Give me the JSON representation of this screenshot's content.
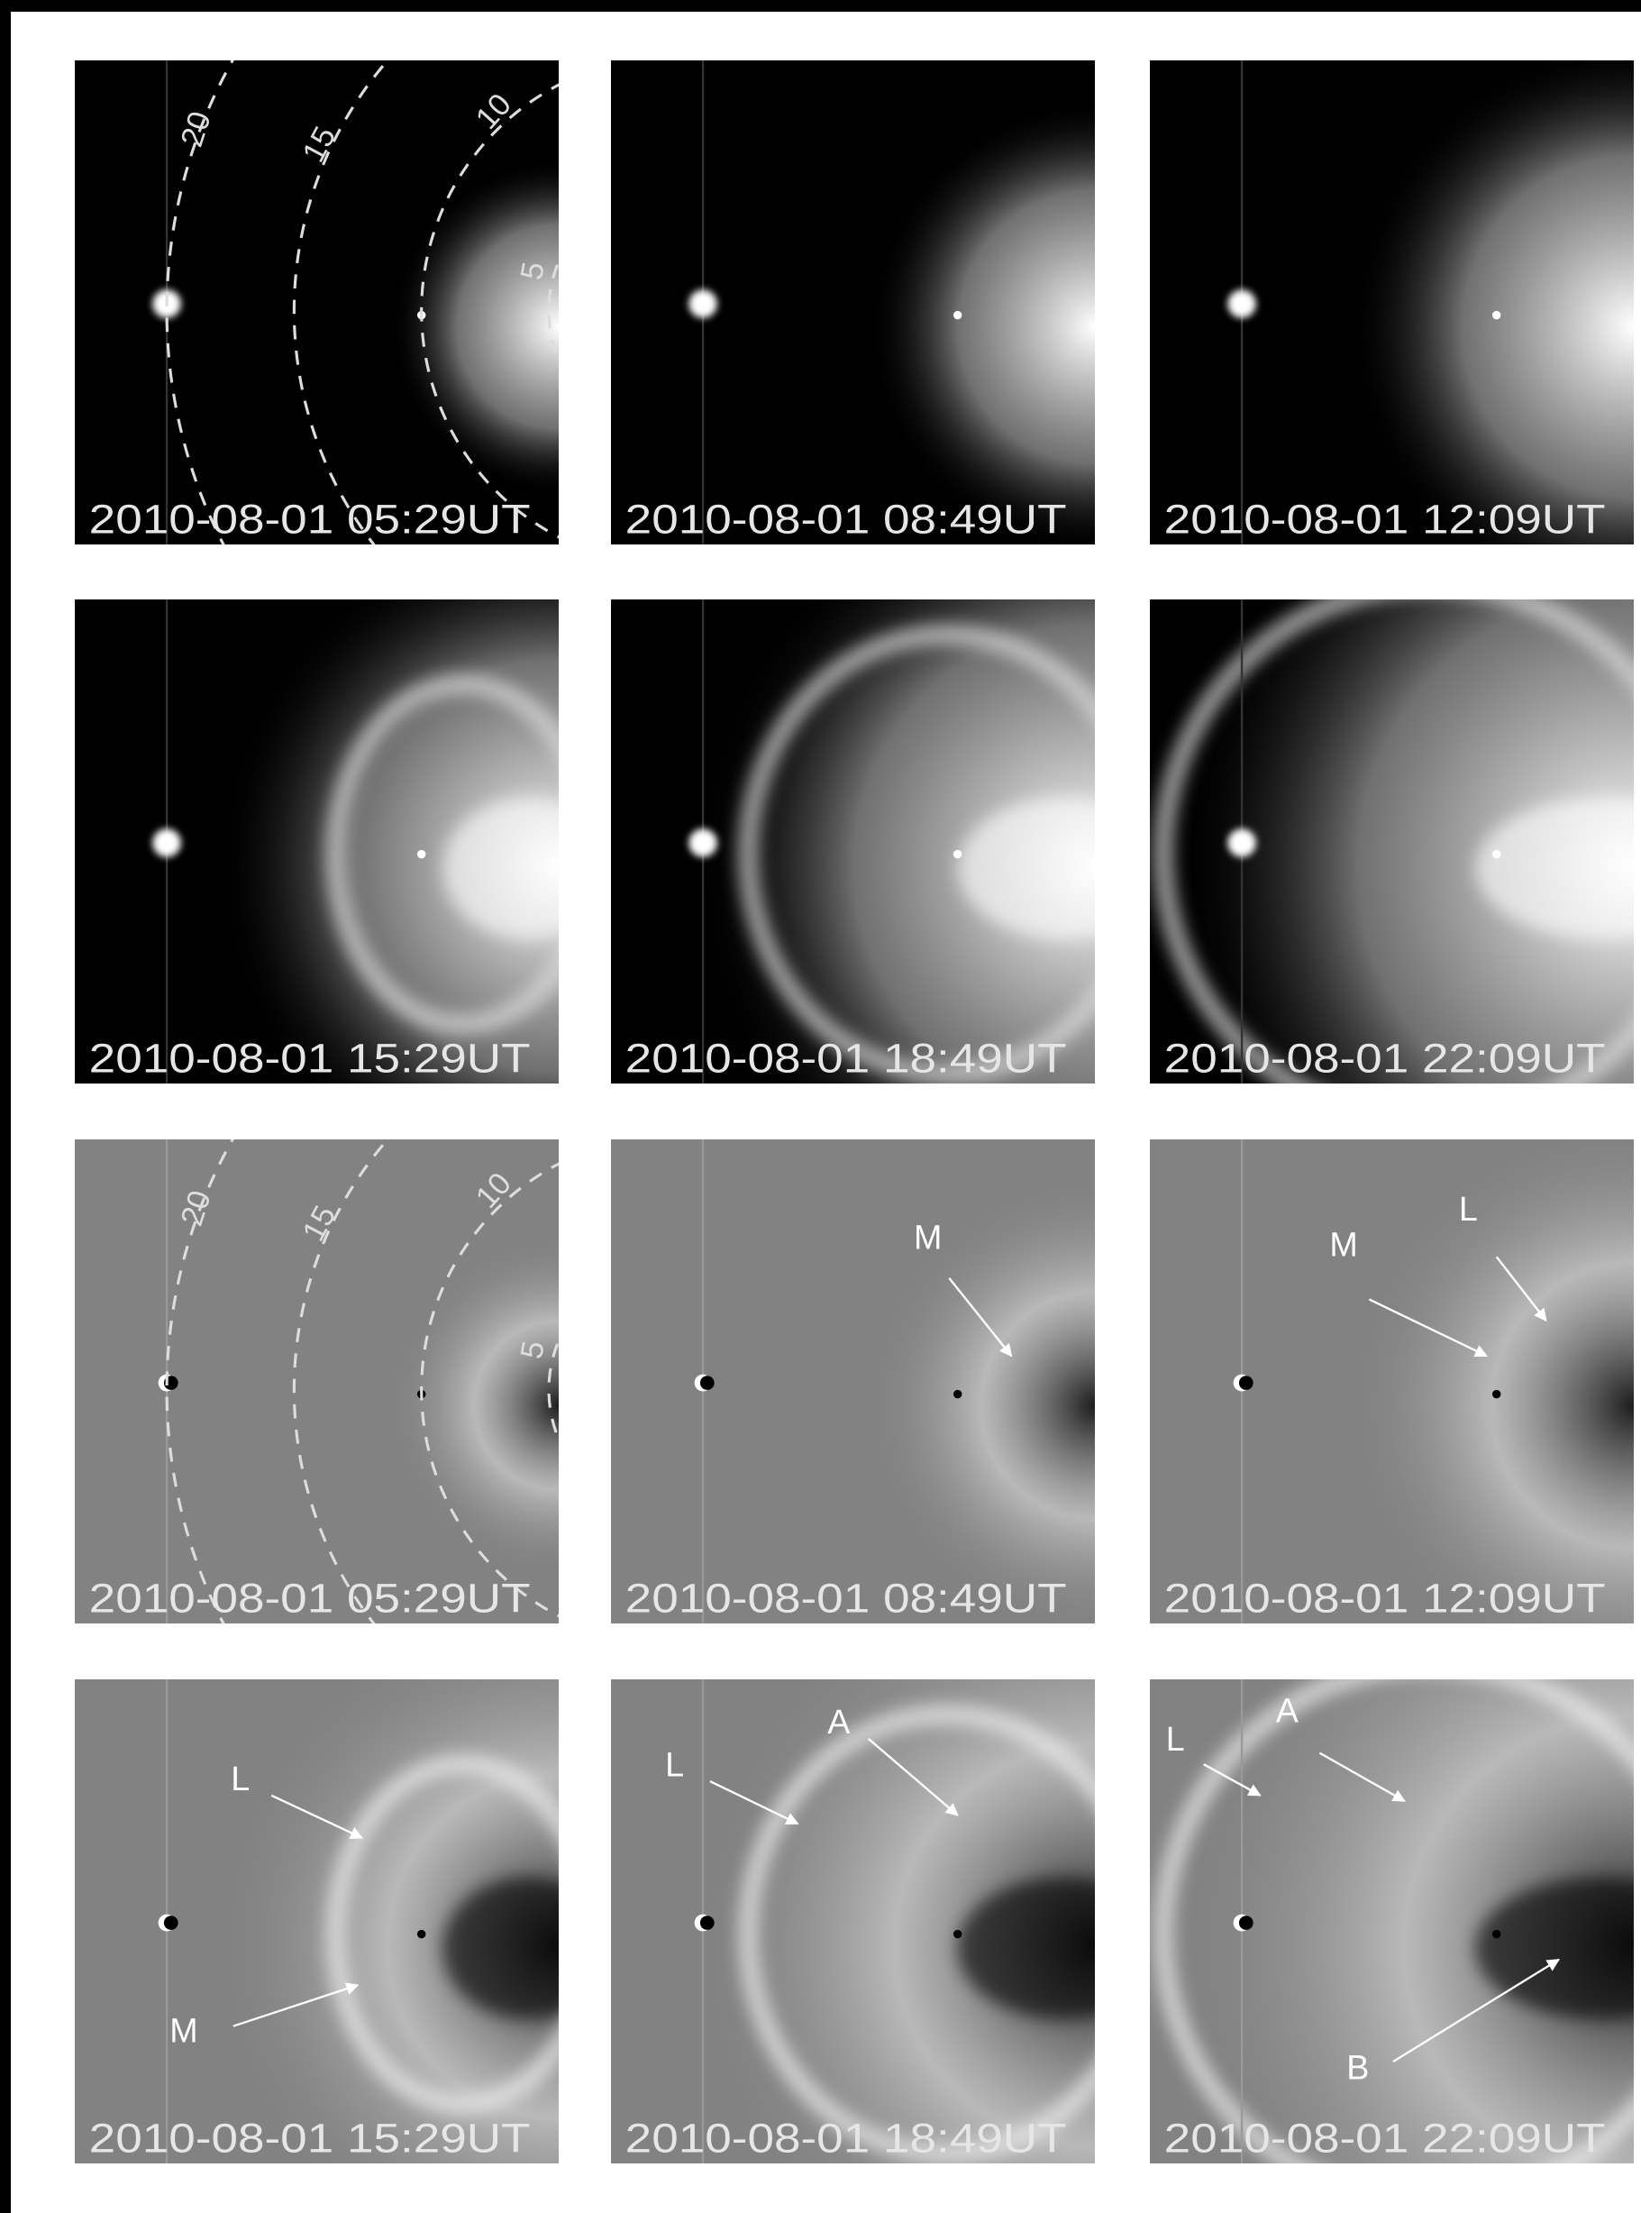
{
  "panels": [
    {
      "timestamp": "2010-08-01 05:29UT",
      "arc_labels": [
        "20",
        "15",
        "10",
        "5"
      ]
    },
    {
      "timestamp": "2010-08-01 08:49UT"
    },
    {
      "timestamp": "2010-08-01 12:09UT"
    },
    {
      "timestamp": "2010-08-01 15:29UT"
    },
    {
      "timestamp": "2010-08-01 18:49UT"
    },
    {
      "timestamp": "2010-08-01 22:09UT"
    },
    {
      "timestamp": "2010-08-01 05:29UT",
      "arc_labels": [
        "20",
        "15",
        "10",
        "5"
      ]
    },
    {
      "timestamp": "2010-08-01 08:49UT",
      "annotations": [
        "M"
      ]
    },
    {
      "timestamp": "2010-08-01 12:09UT",
      "annotations": [
        "M",
        "L"
      ]
    },
    {
      "timestamp": "2010-08-01 15:29UT",
      "annotations": [
        "L",
        "M"
      ]
    },
    {
      "timestamp": "2010-08-01 18:49UT",
      "annotations": [
        "L",
        "A"
      ]
    },
    {
      "timestamp": "2010-08-01 22:09UT",
      "annotations": [
        "L",
        "A",
        "B"
      ]
    }
  ]
}
